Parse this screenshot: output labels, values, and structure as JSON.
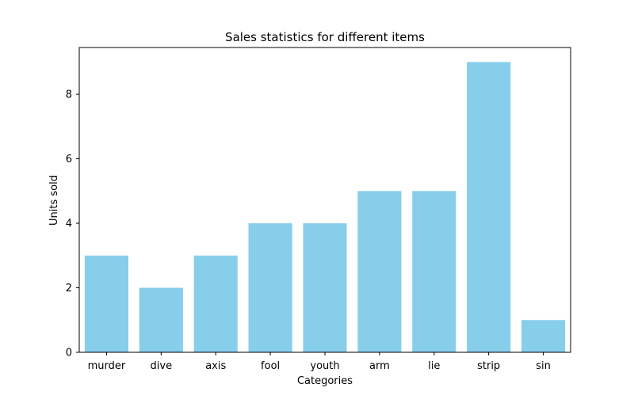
{
  "chart_data": {
    "type": "bar",
    "title": "Sales statistics for different items",
    "xlabel": "Categories",
    "ylabel": "Units sold",
    "categories": [
      "murder",
      "dive",
      "axis",
      "fool",
      "youth",
      "arm",
      "lie",
      "strip",
      "sin"
    ],
    "values": [
      3,
      2,
      3,
      4,
      4,
      5,
      5,
      9,
      1
    ],
    "ylim": [
      0,
      9.45
    ],
    "yticks": [
      0,
      2,
      4,
      6,
      8
    ],
    "grid": false,
    "legend": "none",
    "colors": {
      "bar": "#87ceeb",
      "axis": "#000000",
      "background": "#ffffff"
    }
  }
}
